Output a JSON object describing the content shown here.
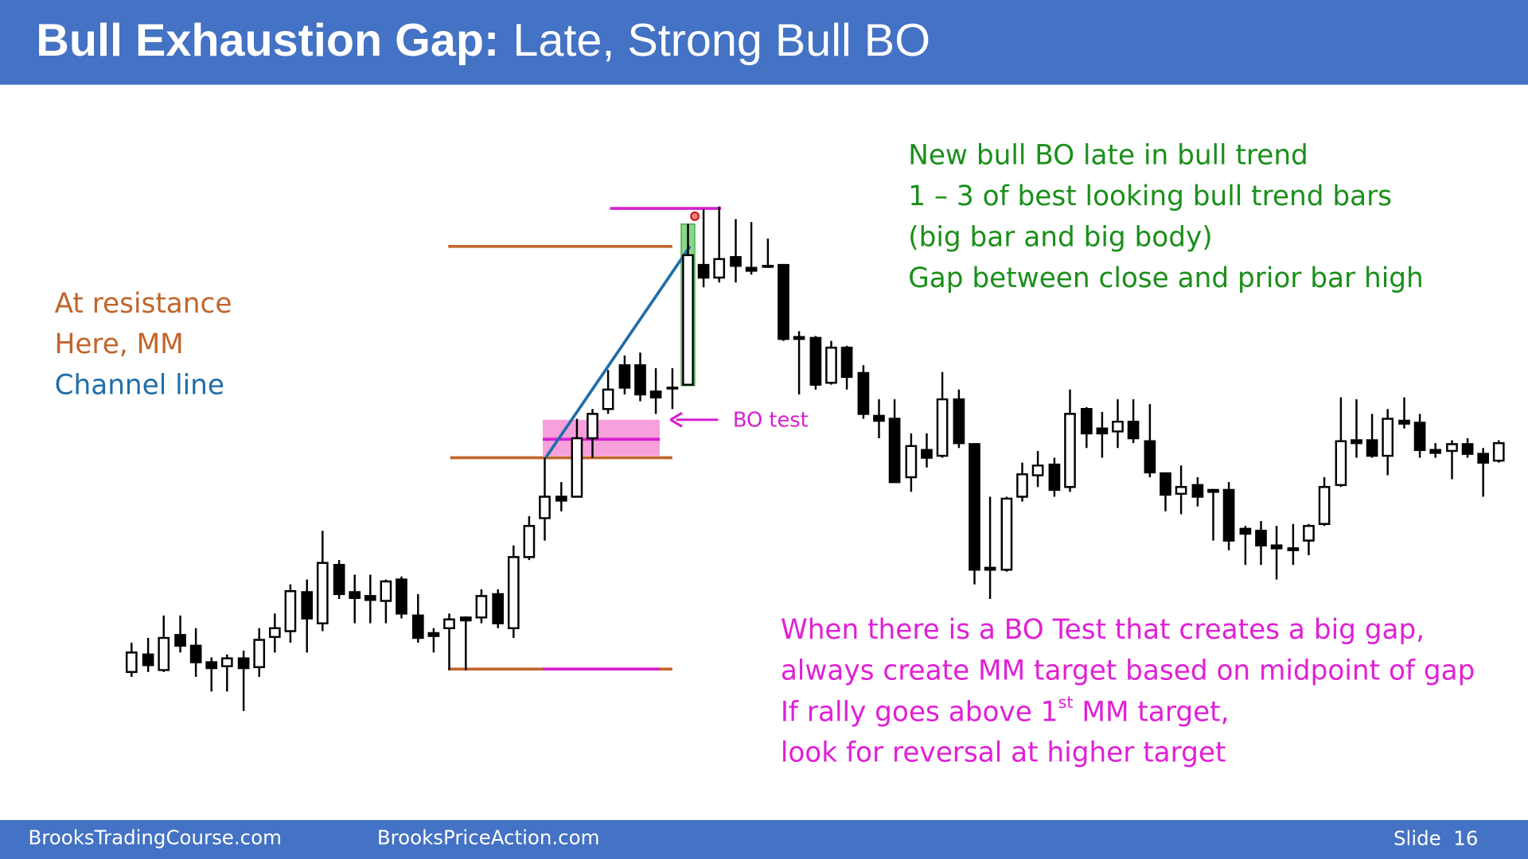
{
  "header": {
    "title_bold": "Bull Exhaustion Gap:",
    "title_rest": "Late, Strong Bull BO"
  },
  "left_notes": [
    "At resistance",
    "Here, MM",
    "Channel line"
  ],
  "green_notes": [
    "New bull BO late in bull trend",
    "1 – 3 of best looking bull trend bars",
    "(big bar and big body)",
    "Gap between close and prior bar high"
  ],
  "bo_test_label": "BO test",
  "magenta_notes": {
    "line1": "When there is a BO Test that creates a big gap,",
    "line2": "always create MM target based on midpoint of gap",
    "line3_before": "If rally goes above 1",
    "line3_sup": "st",
    "line3_after": " MM target,",
    "line4": "look for reversal at higher target"
  },
  "footer": {
    "left": "BrooksTradingCourse.com",
    "middle": "BrooksPriceAction.com",
    "slide": "Slide  16"
  }
}
